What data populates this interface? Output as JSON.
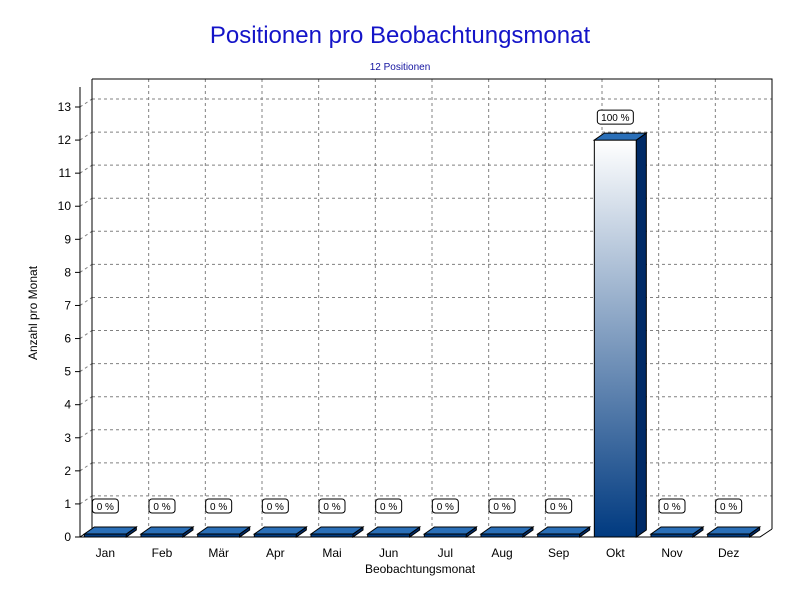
{
  "chart_data": {
    "type": "bar",
    "title": "Positionen pro Beobachtungsmonat",
    "subtitle": "12 Positionen",
    "xlabel": "Beobachtungsmonat",
    "ylabel": "Anzahl pro Monat",
    "categories": [
      "Jan",
      "Feb",
      "Mär",
      "Apr",
      "Mai",
      "Jun",
      "Jul",
      "Aug",
      "Sep",
      "Okt",
      "Nov",
      "Dez"
    ],
    "values": [
      0,
      0,
      0,
      0,
      0,
      0,
      0,
      0,
      0,
      12,
      0,
      0
    ],
    "data_labels": [
      "0 %",
      "0 %",
      "0 %",
      "0 %",
      "0 %",
      "0 %",
      "0 %",
      "0 %",
      "0 %",
      "100 %",
      "0 %",
      "0 %"
    ],
    "ylim": [
      0,
      13
    ],
    "yticks": [
      0,
      1,
      2,
      3,
      4,
      5,
      6,
      7,
      8,
      9,
      10,
      11,
      12,
      13
    ],
    "grid": true,
    "style": "3d",
    "colors": {
      "bar_top": "#ffffff",
      "bar_bottom": "#003a80",
      "bar_side": "#002a66",
      "bar_cap": "#2a6fb8",
      "grid": "#808080",
      "title": "#1414c8"
    }
  }
}
